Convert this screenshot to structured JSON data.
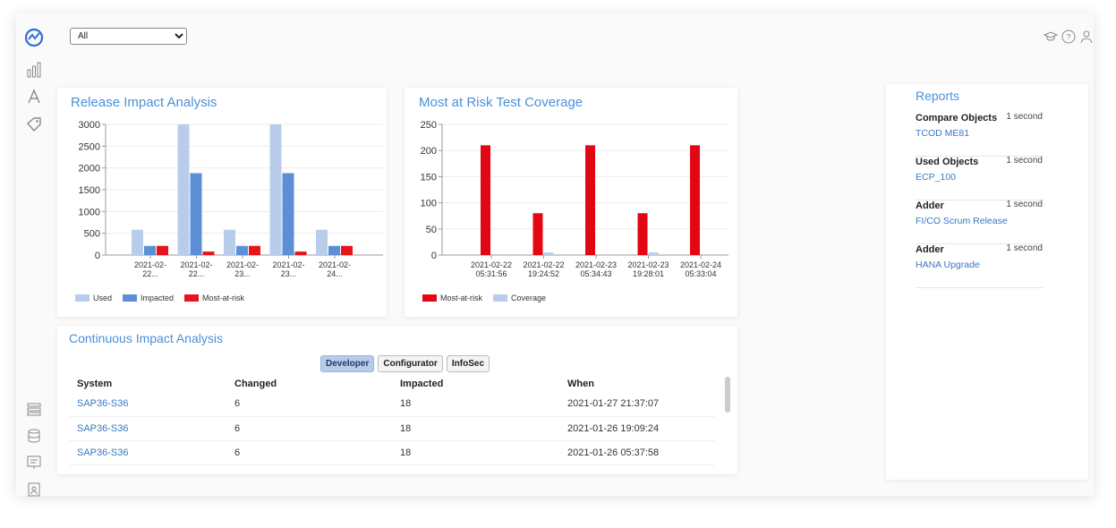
{
  "filter": {
    "selected": "All",
    "options": [
      "All"
    ]
  },
  "release_impact": {
    "title": "Release Impact Analysis",
    "legend": [
      {
        "label": "Used",
        "color": "#b9cdeb"
      },
      {
        "label": "Impacted",
        "color": "#5b8fd6"
      },
      {
        "label": "Most-at-risk",
        "color": "#e8141b"
      }
    ]
  },
  "risk_coverage": {
    "title": "Most at Risk Test Coverage",
    "legend": [
      {
        "label": "Most-at-risk",
        "color": "#e30613"
      },
      {
        "label": "Coverage",
        "color": "#b9cdeb"
      }
    ]
  },
  "continuous": {
    "title": "Continuous Impact Analysis",
    "tabs": [
      "Developer",
      "Configurator",
      "InfoSec"
    ],
    "active_tab": "Developer",
    "columns": [
      "System",
      "Changed",
      "Impacted",
      "When"
    ],
    "rows": [
      {
        "system": "SAP36-S36",
        "changed": "6",
        "impacted": "18",
        "when": "2021-01-27 21:37:07"
      },
      {
        "system": "SAP36-S36",
        "changed": "6",
        "impacted": "18",
        "when": "2021-01-26 19:09:24"
      },
      {
        "system": "SAP36-S36",
        "changed": "6",
        "impacted": "18",
        "when": "2021-01-26 05:37:58"
      }
    ]
  },
  "reports": {
    "title": "Reports",
    "items": [
      {
        "name": "Compare Objects",
        "time": "1 second",
        "link": "TCOD ME81"
      },
      {
        "name": "Used Objects",
        "time": "1 second",
        "link": "ECP_100"
      },
      {
        "name": "Adder",
        "time": "1 second",
        "link": "FI/CO Scrum Release"
      },
      {
        "name": "Adder",
        "time": "1 second",
        "link": "HANA Upgrade"
      }
    ]
  },
  "chart_data": [
    {
      "type": "bar",
      "title": "Release Impact Analysis",
      "categories": [
        [
          "2021-02-",
          "22..."
        ],
        [
          "2021-02-",
          "22..."
        ],
        [
          "2021-02-",
          "23..."
        ],
        [
          "2021-02-",
          "23..."
        ],
        [
          "2021-02-",
          "24..."
        ]
      ],
      "series": [
        {
          "name": "Used",
          "color": "#b9cdeb",
          "values": [
            580,
            3000,
            580,
            3000,
            580
          ]
        },
        {
          "name": "Impacted",
          "color": "#5b8fd6",
          "values": [
            210,
            1880,
            210,
            1880,
            210
          ]
        },
        {
          "name": "Most-at-risk",
          "color": "#e8141b",
          "values": [
            210,
            80,
            210,
            80,
            210
          ]
        }
      ],
      "ylim": [
        0,
        3000
      ],
      "yticks": [
        "3000",
        "2500",
        "2000",
        "1500",
        "1000",
        "500",
        "0"
      ],
      "ytick_values": [
        3000,
        2500,
        2000,
        1500,
        1000,
        500,
        0
      ],
      "grid": true,
      "legend_position": "bottom-left"
    },
    {
      "type": "bar",
      "title": "Most at Risk Test Coverage",
      "categories": [
        [
          "2021-02-22",
          "05:31:56"
        ],
        [
          "2021-02-22",
          "19:24:52"
        ],
        [
          "2021-02-23",
          "05:34:43"
        ],
        [
          "2021-02-23",
          "19:28:01"
        ],
        [
          "2021-02-24",
          "05:33:04"
        ]
      ],
      "series": [
        {
          "name": "Most-at-risk",
          "color": "#e30613",
          "values": [
            210,
            80,
            210,
            80,
            210
          ]
        },
        {
          "name": "Coverage",
          "color": "#b9cdeb",
          "values": [
            0,
            5,
            0,
            5,
            0
          ]
        }
      ],
      "ylim": [
        0,
        250
      ],
      "yticks": [
        "250",
        "200",
        "150",
        "100",
        "50",
        "0"
      ],
      "ytick_values": [
        250,
        200,
        150,
        100,
        50,
        0
      ],
      "grid": true,
      "legend_position": "bottom-left"
    }
  ]
}
